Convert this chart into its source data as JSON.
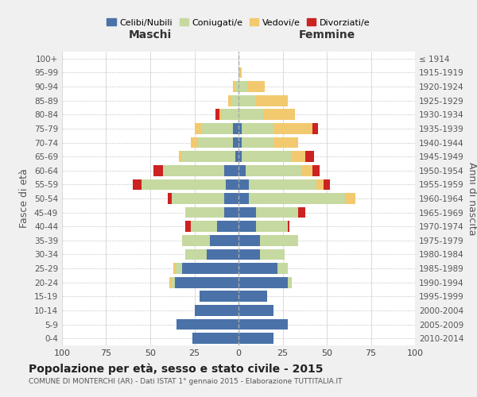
{
  "age_groups": [
    "0-4",
    "5-9",
    "10-14",
    "15-19",
    "20-24",
    "25-29",
    "30-34",
    "35-39",
    "40-44",
    "45-49",
    "50-54",
    "55-59",
    "60-64",
    "65-69",
    "70-74",
    "75-79",
    "80-84",
    "85-89",
    "90-94",
    "95-99",
    "100+"
  ],
  "birth_years": [
    "2010-2014",
    "2005-2009",
    "2000-2004",
    "1995-1999",
    "1990-1994",
    "1985-1989",
    "1980-1984",
    "1975-1979",
    "1970-1974",
    "1965-1969",
    "1960-1964",
    "1955-1959",
    "1950-1954",
    "1945-1949",
    "1940-1944",
    "1935-1939",
    "1930-1934",
    "1925-1929",
    "1920-1924",
    "1915-1919",
    "≤ 1914"
  ],
  "colors": {
    "celibe": "#4a72a8",
    "coniugato": "#c5d9a0",
    "vedovo": "#f2c96e",
    "divorziato": "#cc2222"
  },
  "maschi": {
    "celibe": [
      26,
      35,
      25,
      22,
      36,
      32,
      18,
      16,
      12,
      8,
      8,
      7,
      8,
      2,
      3,
      3,
      0,
      0,
      0,
      0,
      0
    ],
    "coniugato": [
      0,
      0,
      0,
      0,
      2,
      4,
      12,
      16,
      15,
      22,
      30,
      48,
      35,
      30,
      20,
      18,
      10,
      4,
      2,
      0,
      0
    ],
    "vedovo": [
      0,
      0,
      0,
      0,
      1,
      1,
      0,
      0,
      0,
      0,
      0,
      0,
      0,
      2,
      4,
      4,
      1,
      2,
      1,
      0,
      0
    ],
    "divorziato": [
      0,
      0,
      0,
      0,
      0,
      0,
      0,
      0,
      3,
      0,
      2,
      5,
      5,
      0,
      0,
      0,
      2,
      0,
      0,
      0,
      0
    ]
  },
  "femmine": {
    "nubile": [
      20,
      28,
      20,
      16,
      28,
      22,
      12,
      12,
      10,
      10,
      6,
      6,
      4,
      2,
      2,
      2,
      0,
      0,
      0,
      0,
      0
    ],
    "coniugata": [
      0,
      0,
      0,
      0,
      2,
      6,
      14,
      22,
      18,
      24,
      55,
      38,
      32,
      28,
      18,
      18,
      14,
      10,
      5,
      1,
      0
    ],
    "vedova": [
      0,
      0,
      0,
      0,
      0,
      0,
      0,
      0,
      0,
      0,
      5,
      4,
      6,
      8,
      14,
      22,
      18,
      18,
      10,
      1,
      0
    ],
    "divorziata": [
      0,
      0,
      0,
      0,
      0,
      0,
      0,
      0,
      1,
      4,
      0,
      4,
      4,
      5,
      0,
      3,
      0,
      0,
      0,
      0,
      0
    ]
  },
  "xlim": 100,
  "title": "Popolazione per età, sesso e stato civile - 2015",
  "subtitle": "COMUNE DI MONTERCHI (AR) - Dati ISTAT 1° gennaio 2015 - Elaborazione TUTTITALIA.IT",
  "ylabel_left": "Fasce di età",
  "ylabel_right": "Anni di nascita",
  "header_left": "Maschi",
  "header_right": "Femmine",
  "legend_labels": [
    "Celibi/Nubili",
    "Coniugati/e",
    "Vedovi/e",
    "Divorziati/e"
  ],
  "bg_color": "#f0f0f0",
  "plot_bg_color": "#ffffff"
}
